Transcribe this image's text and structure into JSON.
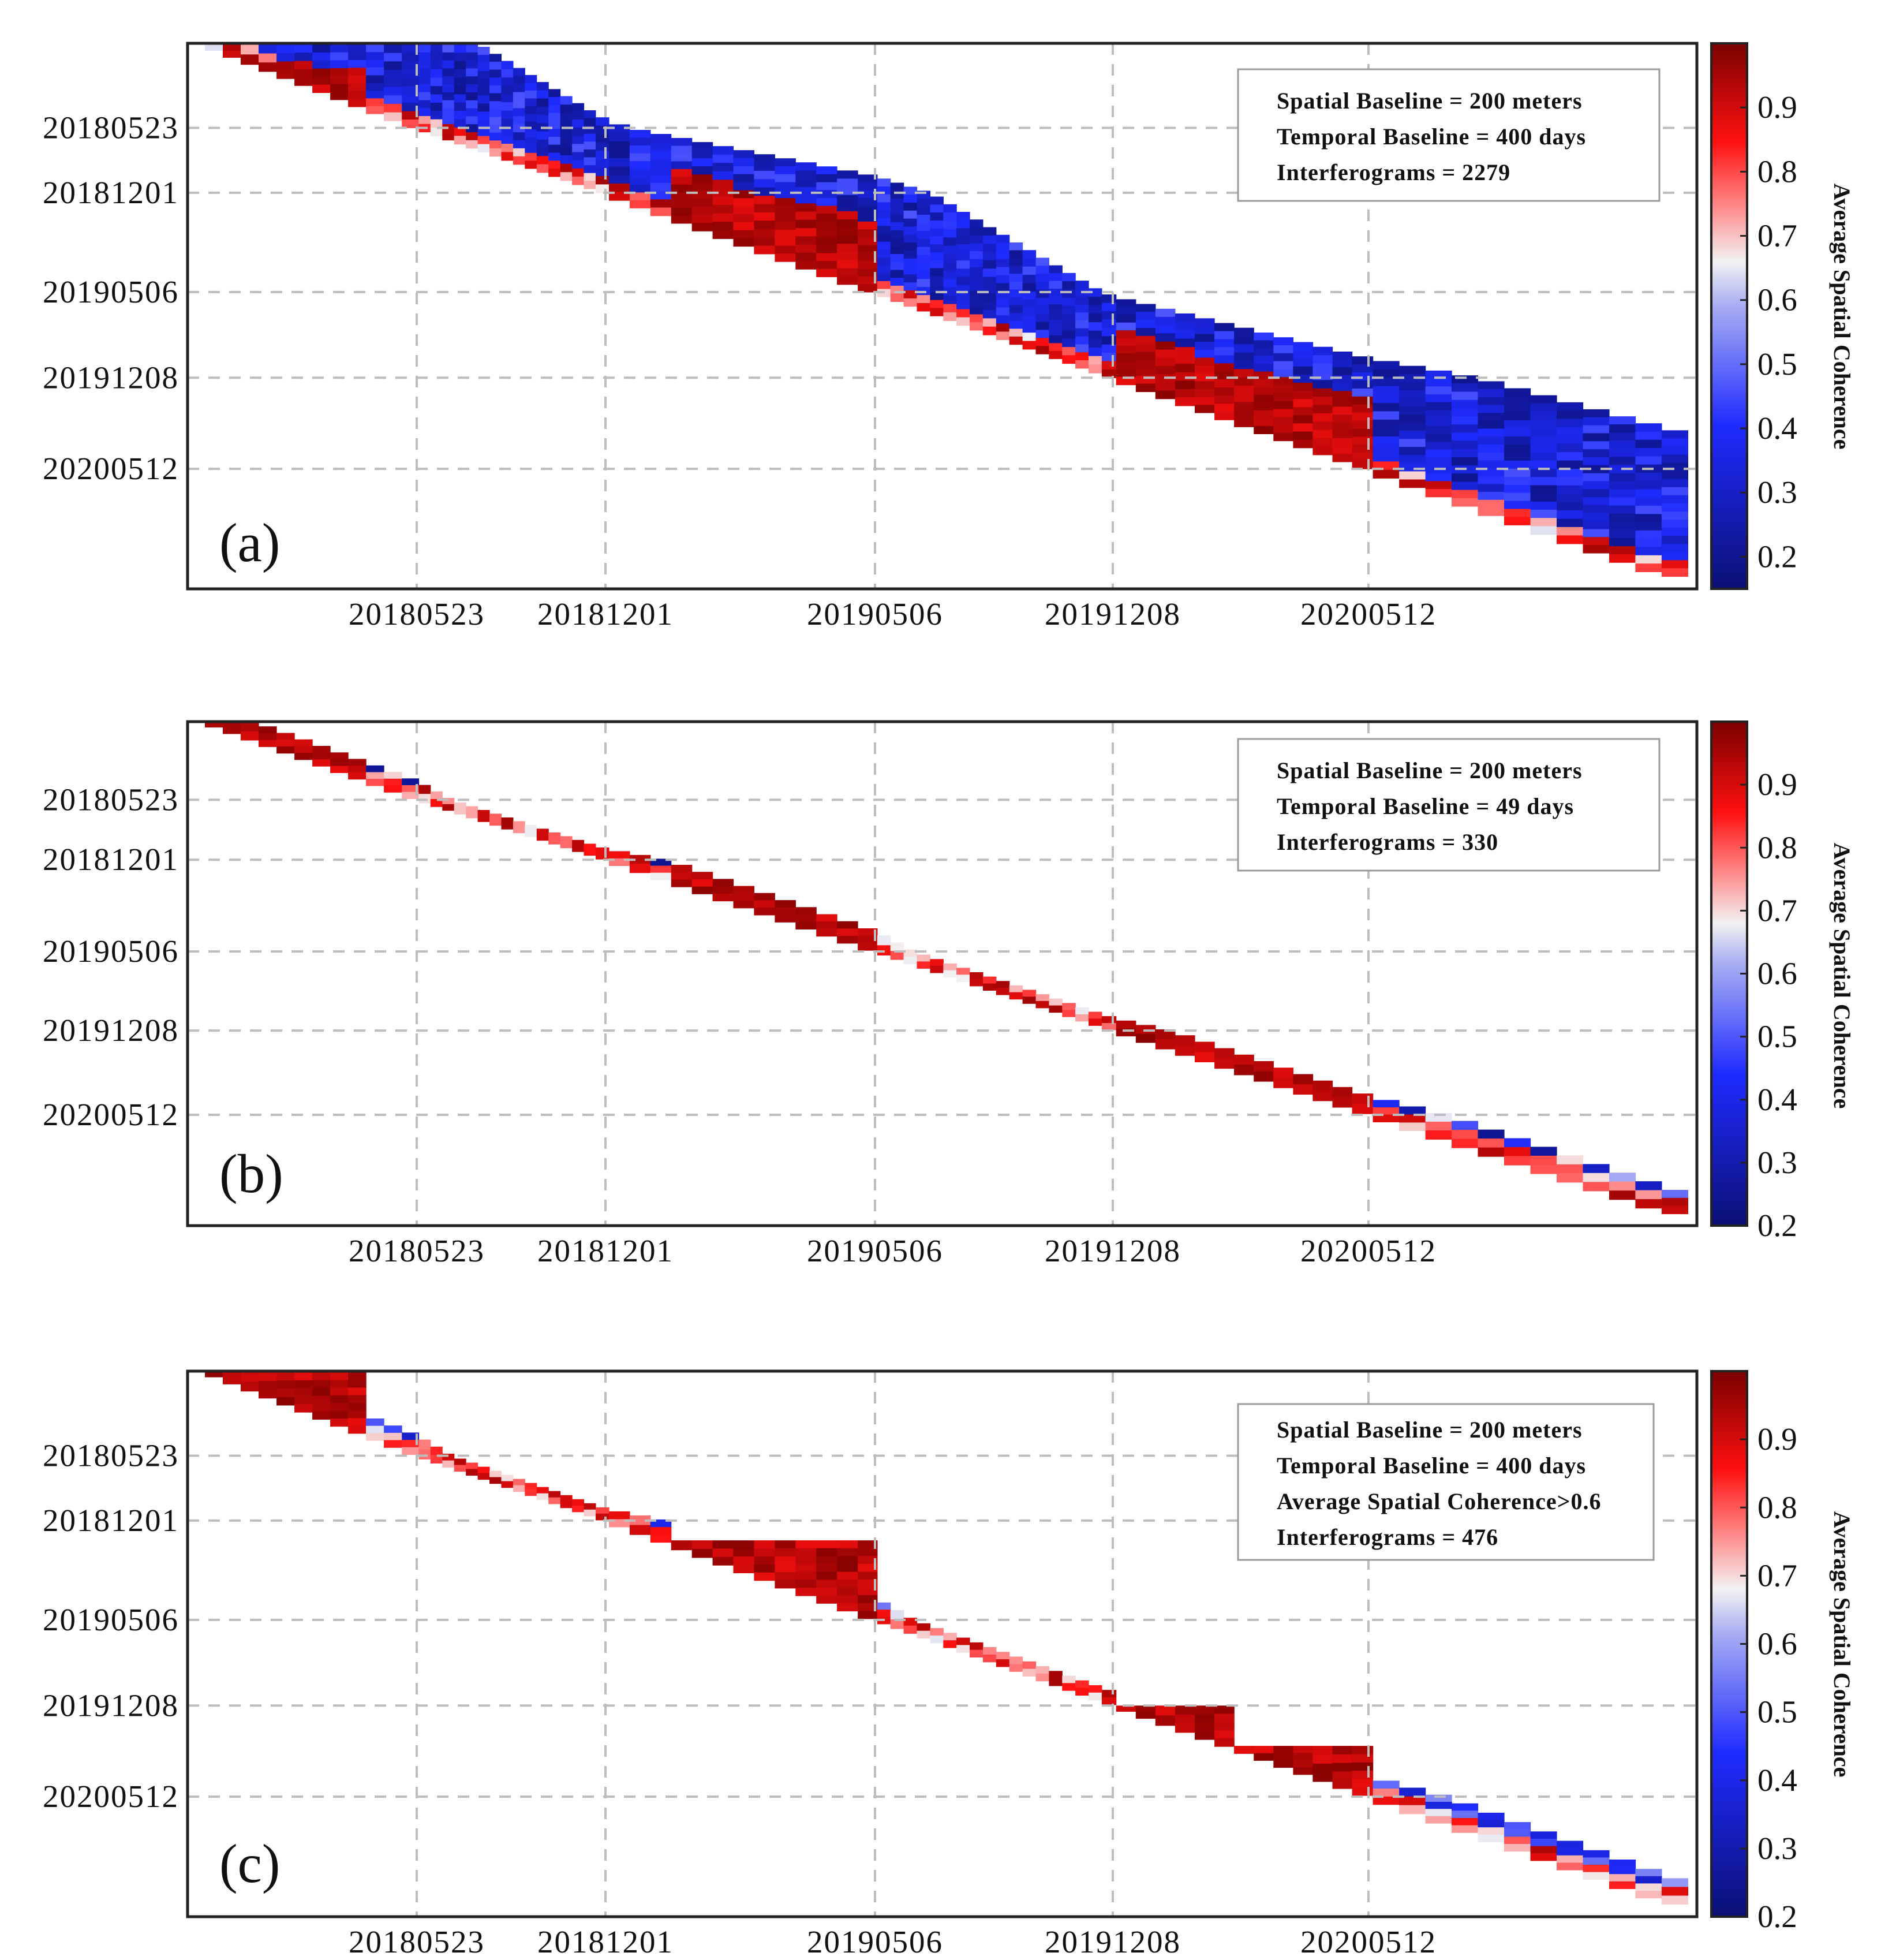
{
  "chart_data": [
    {
      "type": "heatmap",
      "panel_label": "(a)",
      "xlabel": "",
      "ylabel": "",
      "x_tick_labels": [
        "20180523",
        "20181201",
        "20190506",
        "20191208",
        "20200512"
      ],
      "y_tick_labels": [
        "20180523",
        "20181201",
        "20190506",
        "20191208",
        "20200512"
      ],
      "legend_lines": [
        "Spatial  Baseline  =  200 meters",
        "Temporal Baseline = 400 days",
        "Interferograms = 2279"
      ],
      "colorbar": {
        "label": "Average Spatial Coherence",
        "range": [
          0.15,
          1.0
        ],
        "ticks": [
          "0.2",
          "0.3",
          "0.4",
          "0.5",
          "0.6",
          "0.7",
          "0.8",
          "0.9"
        ]
      },
      "spatial_baseline_m": 200,
      "temporal_baseline_days": 400,
      "interferograms": 2279,
      "band_width_days": 400,
      "high_coherence_blocks": [
        {
          "x_start": "20180101",
          "x_end": "20180410",
          "y_start": "20180101",
          "y_end": "20180410"
        },
        {
          "x_start": "20190101",
          "x_end": "20190506",
          "y_start": "20190101",
          "y_end": "20190506"
        },
        {
          "x_start": "20191208",
          "x_end": "20200210",
          "y_start": "20191208",
          "y_end": "20200210"
        },
        {
          "x_start": "20200215",
          "x_end": "20200512",
          "y_start": "20200215",
          "y_end": "20200512"
        }
      ]
    },
    {
      "type": "heatmap",
      "panel_label": "(b)",
      "xlabel": "",
      "ylabel": "",
      "x_tick_labels": [
        "20180523",
        "20181201",
        "20190506",
        "20191208",
        "20200512"
      ],
      "y_tick_labels": [
        "20180523",
        "20181201",
        "20190506",
        "20191208",
        "20200512"
      ],
      "legend_lines": [
        "Spatial  Baseline  =  200 meters",
        "Temporal Baseline = 49 days",
        "Interferograms = 330"
      ],
      "colorbar": {
        "label": "Average Spatial Coherence",
        "range": [
          0.2,
          1.0
        ],
        "ticks": [
          "0.2",
          "0.3",
          "0.4",
          "0.5",
          "0.6",
          "0.7",
          "0.8",
          "0.9"
        ]
      },
      "spatial_baseline_m": 200,
      "temporal_baseline_days": 49,
      "interferograms": 330,
      "band_width_days": 49
    },
    {
      "type": "heatmap",
      "panel_label": "(c)",
      "xlabel": "",
      "ylabel": "",
      "x_tick_labels": [
        "20180523",
        "20181201",
        "20190506",
        "20191208",
        "20200512"
      ],
      "y_tick_labels": [
        "20180523",
        "20181201",
        "20190506",
        "20191208",
        "20200512"
      ],
      "legend_lines": [
        "Spatial  Baseline  =  200 meters",
        "Temporal Baseline = 400 days",
        "Average Spatial Coherence>0.6",
        "Interferograms = 476"
      ],
      "colorbar": {
        "label": "Average Spatial Coherence",
        "range": [
          0.2,
          1.0
        ],
        "ticks": [
          "0.2",
          "0.3",
          "0.4",
          "0.5",
          "0.6",
          "0.7",
          "0.8",
          "0.9"
        ]
      },
      "spatial_baseline_m": 200,
      "temporal_baseline_days": 400,
      "coherence_threshold": 0.6,
      "interferograms": 476,
      "band_width_days": 49
    }
  ],
  "colors": {
    "low": "#0b1075",
    "mid_low": "#1f2bff",
    "neutral": "#f5f5f5",
    "mid_high": "#ff1a1a",
    "high": "#7a0000"
  }
}
